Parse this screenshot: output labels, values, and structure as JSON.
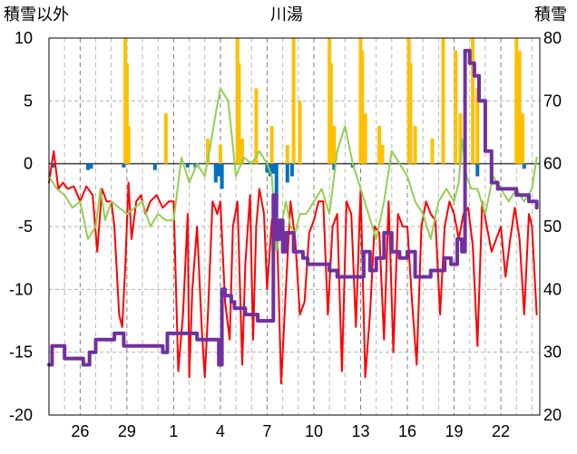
{
  "chart_data": {
    "type": "line",
    "title": "川湯",
    "ylabel_left": "積雪以外",
    "ylabel_right": "積雪",
    "left_axis": {
      "min": -20,
      "max": 10,
      "ticks": [
        10,
        5,
        0,
        -5,
        -10,
        -15,
        -20
      ]
    },
    "right_axis": {
      "min": 20,
      "max": 80,
      "ticks": [
        80,
        70,
        60,
        50,
        40,
        30,
        20
      ]
    },
    "x_axis": {
      "min": 24,
      "max": 55.5,
      "tick_positions": [
        26,
        29,
        32,
        35,
        38,
        41,
        44,
        47,
        50,
        53
      ],
      "tick_labels": [
        "26",
        "29",
        "1",
        "4",
        "7",
        "10",
        "13",
        "16",
        "19",
        "22"
      ]
    },
    "colors": {
      "air_temperature": "#ff0000",
      "daily_mean_component": "#92d050",
      "snowfall_bars": "#ffc000",
      "precip_bars": "#0070c0",
      "snow_depth": "#7030a0"
    },
    "series": [
      {
        "axis": "left",
        "style": "line",
        "color": "#ff0000",
        "x": [
          24.0,
          24.3,
          24.6,
          24.9,
          25.2,
          25.6,
          26.0,
          26.4,
          26.8,
          27.1,
          27.4,
          27.7,
          28.0,
          28.2,
          28.5,
          28.7,
          28.9,
          29.1,
          29.3,
          29.6,
          29.9,
          30.2,
          30.5,
          30.9,
          31.3,
          31.7,
          32.0,
          32.3,
          32.6,
          32.9,
          33.0,
          33.2,
          33.5,
          33.8,
          34.0,
          34.2,
          34.5,
          34.8,
          35.0,
          35.3,
          35.6,
          35.8,
          36.1,
          36.4,
          36.6,
          36.9,
          37.1,
          37.3,
          37.5,
          37.8,
          38.0,
          38.3,
          38.6,
          38.9,
          39.2,
          39.5,
          39.8,
          40.1,
          40.4,
          40.7,
          41.0,
          41.3,
          41.6,
          41.9,
          42.2,
          42.5,
          42.8,
          43.1,
          43.4,
          43.7,
          44.0,
          44.3,
          44.6,
          44.9,
          45.2,
          45.5,
          45.8,
          46.1,
          46.4,
          46.7,
          47.0,
          47.3,
          47.6,
          47.9,
          48.2,
          48.5,
          48.8,
          49.1,
          49.4,
          49.7,
          50.0,
          50.3,
          50.6,
          50.9,
          51.2,
          51.5,
          51.8,
          52.1,
          52.4,
          52.7,
          53.0,
          53.3,
          53.6,
          53.9,
          54.2,
          54.5,
          54.8,
          55.0,
          55.3
        ],
        "y": [
          -1.5,
          1,
          -2,
          -1.5,
          -2,
          -1.8,
          -3,
          -1.8,
          -2.5,
          -7,
          -2,
          -3,
          -3,
          -5,
          -12,
          -13,
          -8,
          -1.5,
          -6,
          -3,
          -2.5,
          -4,
          -3,
          -2.5,
          -3.5,
          -3,
          -3,
          -16.5,
          -12,
          -4,
          -17,
          -10,
          -5,
          -13,
          -17,
          -12,
          -3,
          -4,
          -3,
          -11,
          -14,
          -5,
          -3,
          -16,
          -8,
          -2.5,
          -14,
          -5,
          -2,
          -4,
          -10,
          -4.5,
          -3.5,
          -17.5,
          -10,
          -3,
          -6,
          -12,
          -11,
          -5.5,
          -4.5,
          -3,
          -3,
          -12,
          -5,
          -4,
          -16.5,
          -3,
          -4,
          -13,
          -2,
          -17,
          -12,
          -5,
          -5.5,
          -14,
          -3,
          -15,
          -4,
          -5,
          -5,
          -11,
          -16,
          -5,
          -3,
          -4,
          -4.5,
          -12,
          -5,
          -3,
          -4,
          -6,
          -4,
          -3.5,
          -6.5,
          -14.5,
          -3,
          -5,
          -7,
          -6,
          -5,
          -9,
          -6,
          -3.5,
          -6,
          -12,
          -4,
          -5,
          -12
        ]
      },
      {
        "axis": "left",
        "style": "line",
        "color": "#92d050",
        "x": [
          24.0,
          24.5,
          25.0,
          25.5,
          26.0,
          26.5,
          27.0,
          27.3,
          27.6,
          28.0,
          28.5,
          29.0,
          29.5,
          30.0,
          30.5,
          31.0,
          31.5,
          32.0,
          32.5,
          33.0,
          33.5,
          34.0,
          34.3,
          34.7,
          35.0,
          35.5,
          36.0,
          36.5,
          37.0,
          37.5,
          38.0,
          38.3,
          38.6,
          38.9,
          39.2,
          39.5,
          39.8,
          40.1,
          40.5,
          41.0,
          41.5,
          42.0,
          42.5,
          43.0,
          43.5,
          44.0,
          44.5,
          45.0,
          45.5,
          46.0,
          46.5,
          47.0,
          47.5,
          48.0,
          48.5,
          49.0,
          49.5,
          50.0,
          50.3,
          50.5,
          50.8,
          51.1,
          51.5,
          52.0,
          52.5,
          53.0,
          53.5,
          54.0,
          54.5,
          55.0,
          55.3
        ],
        "y": [
          -1,
          -2,
          -2.5,
          -3.5,
          -3,
          -6,
          -5,
          -2,
          -4.5,
          -3,
          -3.5,
          -4,
          -3.5,
          -3,
          -5,
          -4,
          -4.5,
          -4.5,
          0.5,
          -1.5,
          0,
          -1,
          1,
          4,
          6,
          5,
          -1,
          0.5,
          0,
          1,
          0,
          -1,
          -7,
          -5,
          -3,
          -5,
          -5.5,
          -4,
          -4,
          -3,
          -2,
          -4,
          1,
          3,
          0,
          -2,
          -4,
          -6,
          -3,
          1,
          0,
          -1,
          -3,
          -4,
          -6,
          -3,
          -2,
          -3,
          -1.5,
          2,
          -1,
          -2,
          -2,
          -4,
          -1,
          -2,
          -3,
          -2,
          -3,
          -2,
          0.5
        ]
      },
      {
        "axis": "right",
        "style": "step",
        "color": "#7030a0",
        "x": [
          24.0,
          24.2,
          24.6,
          25.0,
          25.4,
          25.8,
          26.2,
          26.6,
          27.0,
          27.4,
          27.8,
          28.2,
          28.8,
          29.5,
          30.2,
          30.9,
          31.3,
          31.6,
          32.0,
          32.5,
          33.0,
          33.5,
          34.0,
          34.5,
          34.9,
          35.1,
          35.3,
          35.5,
          35.7,
          35.9,
          36.2,
          36.6,
          37.0,
          37.4,
          37.8,
          38.1,
          38.4,
          38.6,
          38.8,
          39.0,
          39.2,
          39.4,
          39.7,
          40.0,
          40.3,
          40.6,
          41.0,
          41.5,
          42.0,
          42.5,
          43.0,
          43.4,
          43.8,
          44.2,
          44.6,
          45.0,
          45.5,
          46.0,
          46.5,
          47.0,
          47.5,
          48.0,
          48.5,
          49.0,
          49.4,
          49.8,
          50.2,
          50.5,
          50.7,
          50.8,
          51.0,
          51.3,
          51.6,
          52.0,
          52.4,
          52.8,
          53.2,
          53.6,
          54.0,
          54.4,
          54.8,
          55.0,
          55.3
        ],
        "y": [
          28,
          31,
          31,
          29,
          29,
          29,
          28,
          30,
          32,
          32,
          32,
          33,
          31,
          31,
          31,
          31,
          30,
          33,
          33,
          33,
          33,
          32,
          32,
          32,
          28,
          40,
          39,
          39,
          38,
          37,
          37,
          36,
          36,
          35,
          35,
          35,
          55,
          48,
          51,
          46,
          49,
          49,
          46,
          46,
          45,
          44,
          44,
          44,
          43,
          42,
          42,
          42,
          42,
          46,
          43,
          45,
          49,
          46,
          45,
          46,
          42,
          42,
          43,
          43,
          45,
          44,
          48,
          46,
          78,
          78,
          76,
          74,
          70,
          62,
          57,
          56,
          56,
          56,
          55,
          55,
          54,
          54,
          53
        ]
      },
      {
        "axis": "left",
        "style": "bars",
        "color": "#ffc000",
        "x": [
          28.9,
          29.0,
          29.1,
          31.5,
          34.2,
          35.0,
          36.1,
          36.2,
          36.4,
          37.3,
          38.3,
          39.3,
          39.7,
          40.1,
          42.0,
          42.1,
          42.3,
          44.0,
          44.1,
          44.3,
          45.2,
          45.4,
          47.1,
          47.2,
          47.5,
          48.6,
          49.3,
          50.1,
          50.4,
          51.2,
          51.5,
          54.0,
          54.2,
          54.4
        ],
        "y": [
          10,
          8,
          3,
          4,
          2,
          1.5,
          10,
          8,
          2,
          6,
          3,
          1.5,
          10,
          5,
          10,
          8,
          3,
          10,
          9,
          4,
          3,
          1.5,
          10,
          8,
          3,
          2,
          10,
          9,
          4,
          10,
          6,
          10,
          9,
          4
        ]
      },
      {
        "axis": "left",
        "style": "bars",
        "color": "#0070c0",
        "x": [
          24.3,
          26.5,
          26.7,
          28.8,
          30.8,
          32.9,
          33.4,
          34.7,
          34.9,
          35.1,
          38.0,
          38.2,
          38.4,
          38.6,
          39.3,
          39.6,
          42.3,
          43.5,
          51.5,
          54.5
        ],
        "y": [
          -0.3,
          -0.5,
          -0.4,
          -0.3,
          -0.5,
          -0.3,
          -0.3,
          -1.5,
          -1,
          -2,
          -0.7,
          -1,
          -0.8,
          -3,
          -1.5,
          -1,
          -0.5,
          -0.3,
          -1,
          -0.4
        ]
      }
    ]
  }
}
